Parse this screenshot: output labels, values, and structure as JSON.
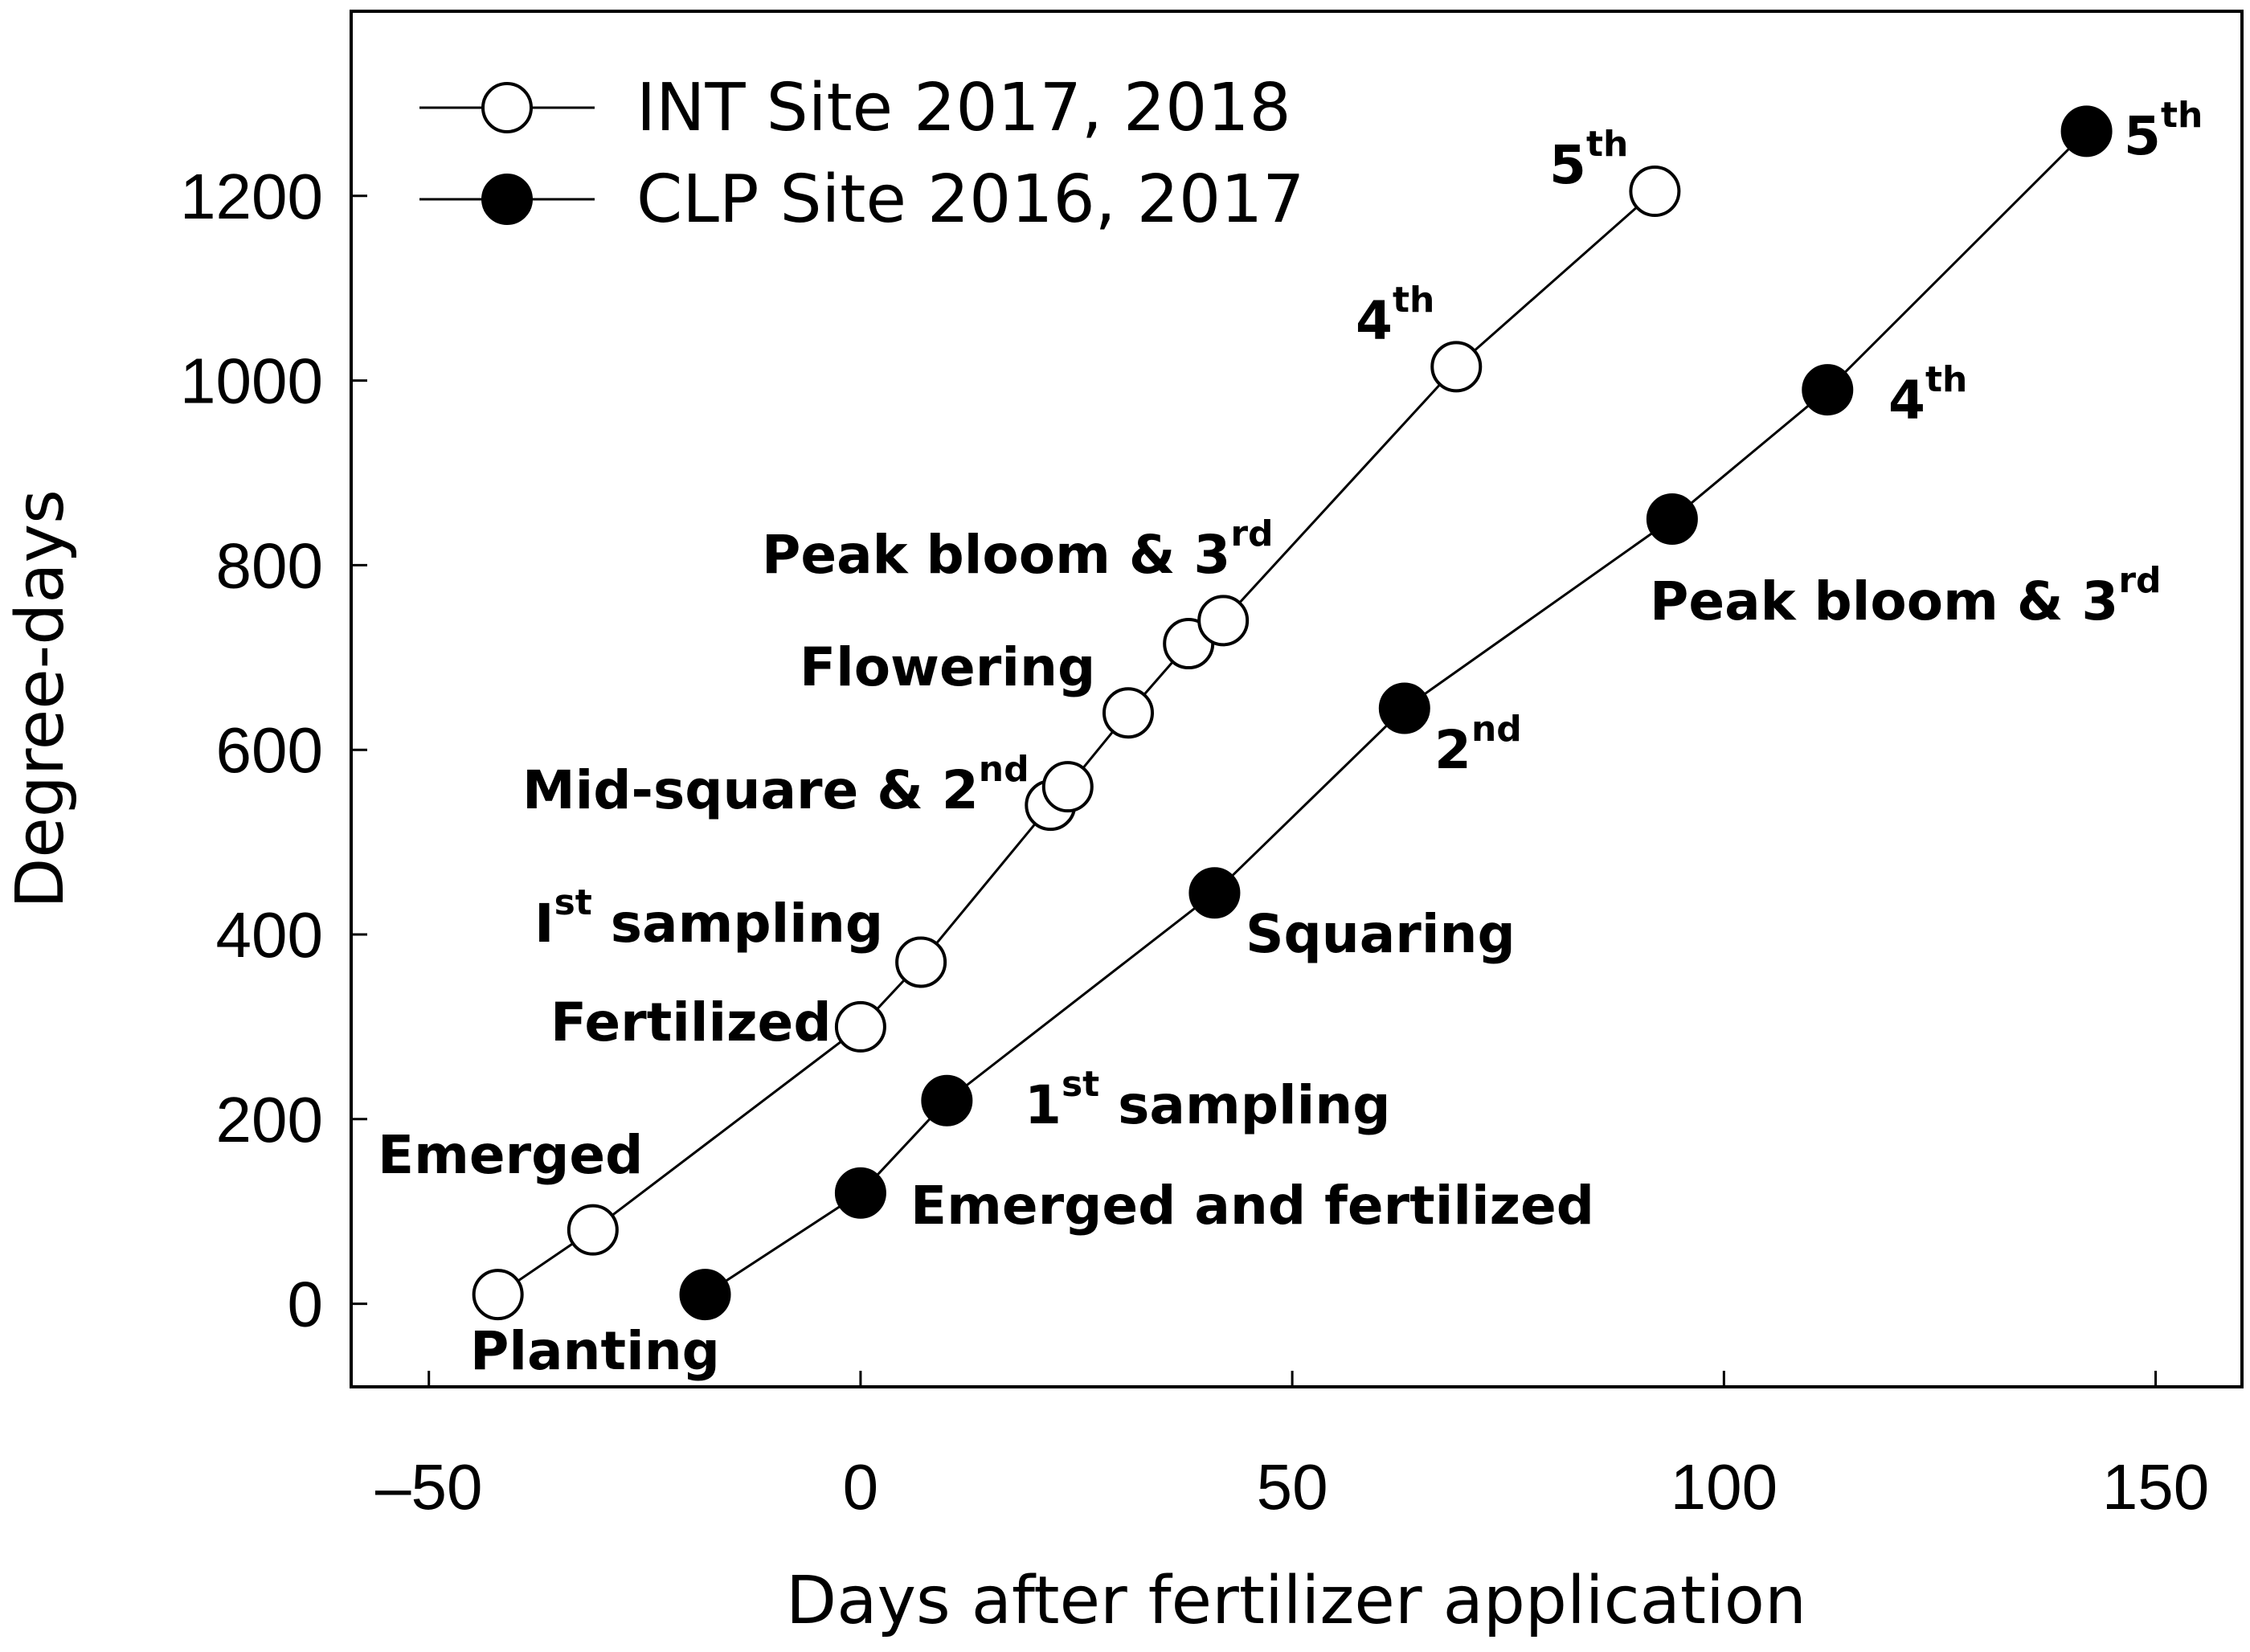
{
  "chart_data": {
    "type": "line",
    "title": "",
    "xlabel": "Days after fertilizer application",
    "ylabel": "Degree-days",
    "xlim": [
      -59,
      160
    ],
    "ylim": [
      -90,
      1400
    ],
    "xticks": [
      -50,
      0,
      50,
      100,
      150
    ],
    "xtick_labels": [
      "–50",
      "0",
      "50",
      "100",
      "150"
    ],
    "yticks": [
      0,
      200,
      400,
      600,
      800,
      1000,
      1200
    ],
    "ytick_labels": [
      "0",
      "200",
      "400",
      "600",
      "800",
      "1000",
      "1200"
    ],
    "grid": false,
    "legend_position": "top-left",
    "series": [
      {
        "name": "INT Site 2017, 2018",
        "marker": "open-circle",
        "x": [
          -42,
          -31,
          0,
          7,
          22,
          24,
          31,
          38,
          42,
          69,
          92
        ],
        "y": [
          10,
          80,
          300,
          370,
          540,
          560,
          640,
          715,
          740,
          1015,
          1205
        ]
      },
      {
        "name": "CLP Site 2016, 2017",
        "marker": "filled-circle",
        "x": [
          -18,
          0,
          10,
          41,
          63,
          94,
          112,
          142
        ],
        "y": [
          10,
          120,
          220,
          445,
          645,
          850,
          990,
          1270
        ]
      }
    ],
    "annotations": [
      {
        "series": 0,
        "text": "Planting",
        "sup": ""
      },
      {
        "series": 0,
        "text": "Emerged",
        "sup": ""
      },
      {
        "series": 0,
        "text": "Fertilized",
        "sup": ""
      },
      {
        "series": 0,
        "text": "I",
        "sup": "st",
        "after": " sampling"
      },
      {
        "series": 0,
        "text": "Mid-square & 2",
        "sup": "nd"
      },
      {
        "series": 0,
        "text": "Flowering",
        "sup": ""
      },
      {
        "series": 0,
        "text": "Peak bloom & 3",
        "sup": "rd"
      },
      {
        "series": 0,
        "text": "4",
        "sup": "th"
      },
      {
        "series": 0,
        "text": "5",
        "sup": "th"
      },
      {
        "series": 1,
        "text": "Emerged and fertilized",
        "sup": ""
      },
      {
        "series": 1,
        "text": "1",
        "sup": "st",
        "after": " sampling"
      },
      {
        "series": 1,
        "text": "Squaring",
        "sup": ""
      },
      {
        "series": 1,
        "text": "2",
        "sup": "nd"
      },
      {
        "series": 1,
        "text": "Peak bloom & 3",
        "sup": "rd"
      },
      {
        "series": 1,
        "text": "4",
        "sup": "th"
      },
      {
        "series": 1,
        "text": "5",
        "sup": "th"
      }
    ]
  }
}
